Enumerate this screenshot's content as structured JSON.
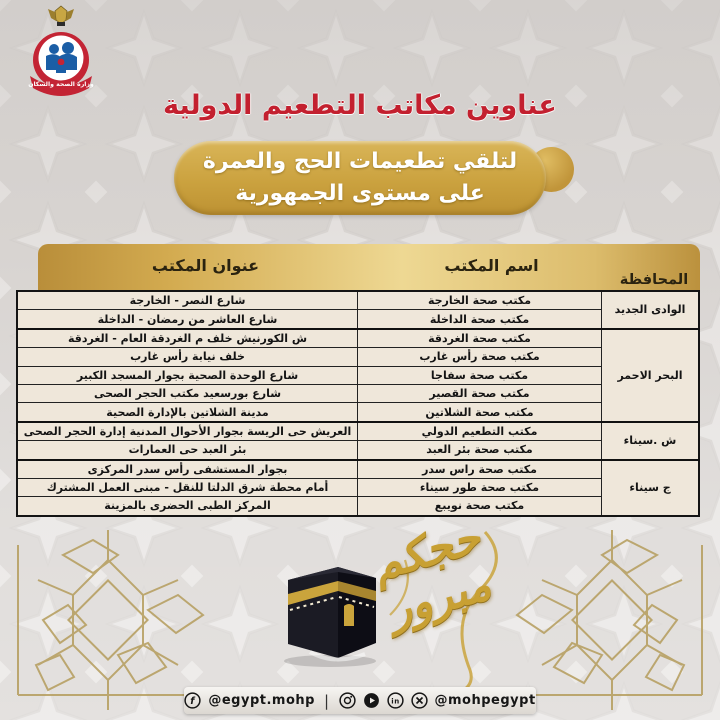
{
  "header": {
    "title": "عناوين مكاتب التطعيم الدولية",
    "subtitle_line1": "لتلقي تطعيمات الحج والعمرة",
    "subtitle_line2": "على مستوى الجمهورية"
  },
  "logo": {
    "ministry_name": "وزارة الصحة والسكان"
  },
  "table": {
    "headers": {
      "governorate": "المحافظة",
      "name": "اسم المكتب",
      "address": "عنوان المكتب"
    },
    "groups": [
      {
        "governorate": "الوادى الجديد",
        "rows": [
          {
            "name": "مكتب صحة الخارجة",
            "address": "شارع النصر - الخارجة"
          },
          {
            "name": "مكتب صحة الداخلة",
            "address": "شارع العاشر من رمضان - الداخلة"
          }
        ]
      },
      {
        "governorate": "البحر الاحمر",
        "rows": [
          {
            "name": "مكتب صحة الغردقة",
            "address": "ش الكورنيش خلف م الغردقة العام - الغردقة"
          },
          {
            "name": "مكتب صحة رأس غارب",
            "address": "خلف نيابة رأس غارب"
          },
          {
            "name": "مكتب صحة سفاجا",
            "address": "شارع الوحدة الصحية بجوار المسجد الكبير"
          },
          {
            "name": "مكتب صحة القصير",
            "address": "شارع بورسعيد مكتب الحجر الصحى"
          },
          {
            "name": "مكتب صحة الشلاتين",
            "address": "مدينة الشلاتين بالإدارة الصحية"
          }
        ]
      },
      {
        "governorate": "ش .سيناء",
        "rows": [
          {
            "name": "مكتب التطعيم الدولي",
            "address": "العريش حى الريسة بجوار الأحوال المدنية إدارة الحجر الصحى"
          },
          {
            "name": "مكتب صحة بئر العبد",
            "address": "بئر العبد حى العمارات"
          }
        ]
      },
      {
        "governorate": "ج سيناء",
        "rows": [
          {
            "name": "مكتب صحة راس سدر",
            "address": "بجوار المستشفى رأس سدر المركزى"
          },
          {
            "name": "مكتب صحة طور سيناء",
            "address": "أمام محطة شرق الدلتا للنقل - مبنى العمل المشترك"
          },
          {
            "name": "مكتب صحة نويبع",
            "address": "المركز الطبى الحضرى بالمزينة"
          }
        ]
      }
    ]
  },
  "decor": {
    "calligraphy": "حجكم مبرور",
    "calligraphy_word1": "حجكم",
    "calligraphy_word2": "مبرور",
    "kaaba": "kaaba-illustration"
  },
  "footer": {
    "facebook_handle": "@egypt.mohp",
    "general_handle": "@mohpegypt",
    "separator": "|",
    "icons": [
      "facebook-icon",
      "instagram-icon",
      "youtube-icon",
      "linkedin-icon",
      "x-icon"
    ]
  },
  "colors": {
    "accent_red": "#c3202f",
    "gold": "#c9a23c",
    "table_row_bg": "#efe7da",
    "background": "#d8d4d1",
    "text_dark": "#141414"
  }
}
